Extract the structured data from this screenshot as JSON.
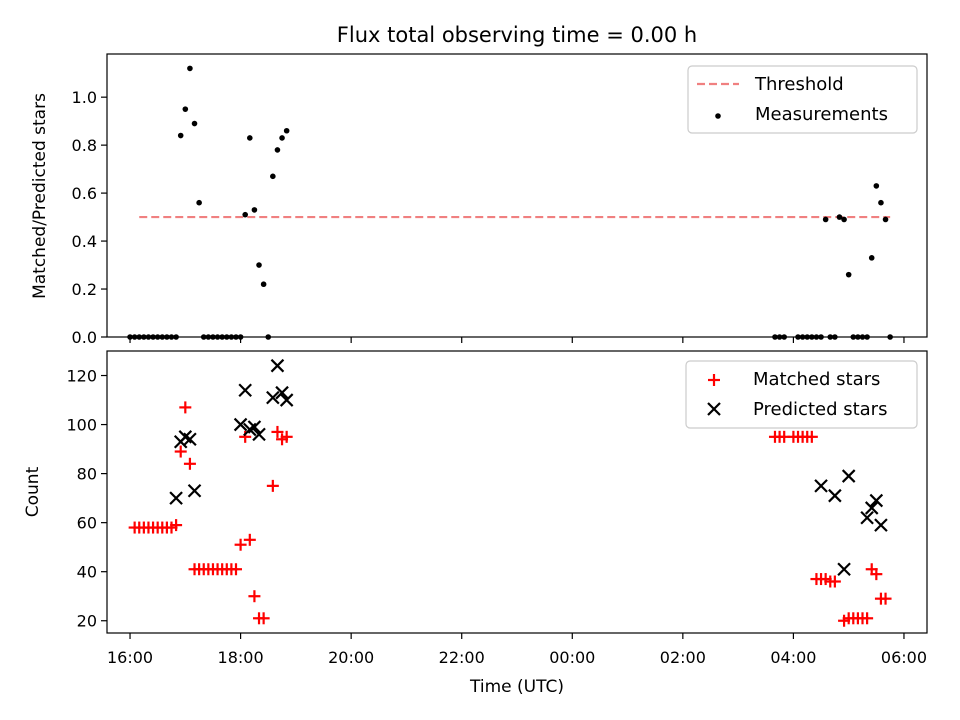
{
  "figure": {
    "title": "Flux total observing time = 0.00 h"
  },
  "chart_data": [
    {
      "type": "scatter",
      "panel": "top",
      "ylabel": "Matched/Predicted stars",
      "ylim": [
        0,
        1.18
      ],
      "yticks": [
        0.0,
        0.2,
        0.4,
        0.6,
        0.8,
        1.0
      ],
      "ytick_labels": [
        "0.0",
        "0.2",
        "0.4",
        "0.6",
        "0.8",
        "1.0"
      ],
      "legend_position": "top-right",
      "threshold": {
        "name": "Threshold",
        "value": 0.5,
        "color": "#f08080",
        "x_start": "16:10",
        "x_end": "05:45"
      },
      "series": [
        {
          "name": "Measurements",
          "color": "#000000",
          "marker": "dot",
          "points": [
            [
              "16:00",
              0
            ],
            [
              "16:05",
              0
            ],
            [
              "16:10",
              0
            ],
            [
              "16:15",
              0
            ],
            [
              "16:20",
              0
            ],
            [
              "16:25",
              0
            ],
            [
              "16:30",
              0
            ],
            [
              "16:35",
              0
            ],
            [
              "16:40",
              0
            ],
            [
              "16:45",
              0
            ],
            [
              "16:50",
              0
            ],
            [
              "16:55",
              0.84
            ],
            [
              "17:00",
              0.95
            ],
            [
              "17:05",
              1.12
            ],
            [
              "17:10",
              0.89
            ],
            [
              "17:15",
              0.56
            ],
            [
              "17:20",
              0
            ],
            [
              "17:25",
              0
            ],
            [
              "17:30",
              0
            ],
            [
              "17:35",
              0
            ],
            [
              "17:40",
              0
            ],
            [
              "17:45",
              0
            ],
            [
              "17:50",
              0
            ],
            [
              "17:55",
              0
            ],
            [
              "18:00",
              0
            ],
            [
              "18:05",
              0.51
            ],
            [
              "18:10",
              0.83
            ],
            [
              "18:15",
              0.53
            ],
            [
              "18:20",
              0.3
            ],
            [
              "18:25",
              0.22
            ],
            [
              "18:30",
              0
            ],
            [
              "18:35",
              0.67
            ],
            [
              "18:40",
              0.78
            ],
            [
              "18:45",
              0.83
            ],
            [
              "18:50",
              0.86
            ],
            [
              "03:40",
              0
            ],
            [
              "03:45",
              0
            ],
            [
              "03:50",
              0
            ],
            [
              "04:05",
              0
            ],
            [
              "04:10",
              0
            ],
            [
              "04:15",
              0
            ],
            [
              "04:20",
              0
            ],
            [
              "04:25",
              0
            ],
            [
              "04:30",
              0
            ],
            [
              "04:35",
              0.49
            ],
            [
              "04:40",
              0
            ],
            [
              "04:45",
              0
            ],
            [
              "04:50",
              0.5
            ],
            [
              "04:55",
              0.49
            ],
            [
              "05:00",
              0.26
            ],
            [
              "05:05",
              0
            ],
            [
              "05:10",
              0
            ],
            [
              "05:15",
              0
            ],
            [
              "05:20",
              0
            ],
            [
              "05:25",
              0.33
            ],
            [
              "05:30",
              0.63
            ],
            [
              "05:35",
              0.56
            ],
            [
              "05:40",
              0.49
            ],
            [
              "05:45",
              0
            ]
          ]
        }
      ]
    },
    {
      "type": "scatter",
      "panel": "bottom",
      "xlabel": "Time (UTC)",
      "ylabel": "Count",
      "ylim": [
        15,
        130
      ],
      "yticks": [
        20,
        40,
        60,
        80,
        100,
        120
      ],
      "ytick_labels": [
        "20",
        "40",
        "60",
        "80",
        "100",
        "120"
      ],
      "xlim": [
        "15:35",
        "06:25"
      ],
      "xticks": [
        "16:00",
        "18:00",
        "20:00",
        "22:00",
        "00:00",
        "02:00",
        "04:00",
        "06:00"
      ],
      "legend_position": "top-right",
      "series": [
        {
          "name": "Matched stars",
          "color": "#ff0000",
          "marker": "plus",
          "points": [
            [
              "16:05",
              58
            ],
            [
              "16:10",
              58
            ],
            [
              "16:15",
              58
            ],
            [
              "16:20",
              58
            ],
            [
              "16:25",
              58
            ],
            [
              "16:30",
              58
            ],
            [
              "16:35",
              58
            ],
            [
              "16:40",
              58
            ],
            [
              "16:45",
              58
            ],
            [
              "16:50",
              59
            ],
            [
              "16:55",
              89
            ],
            [
              "17:00",
              107
            ],
            [
              "17:05",
              84
            ],
            [
              "17:10",
              41
            ],
            [
              "17:15",
              41
            ],
            [
              "17:20",
              41
            ],
            [
              "17:25",
              41
            ],
            [
              "17:30",
              41
            ],
            [
              "17:35",
              41
            ],
            [
              "17:40",
              41
            ],
            [
              "17:45",
              41
            ],
            [
              "17:50",
              41
            ],
            [
              "17:55",
              41
            ],
            [
              "18:00",
              51
            ],
            [
              "18:05",
              95
            ],
            [
              "18:10",
              53
            ],
            [
              "18:15",
              30
            ],
            [
              "18:20",
              21
            ],
            [
              "18:25",
              21
            ],
            [
              "18:35",
              75
            ],
            [
              "18:40",
              97
            ],
            [
              "18:45",
              94
            ],
            [
              "18:50",
              95
            ],
            [
              "03:40",
              95
            ],
            [
              "03:45",
              95
            ],
            [
              "03:50",
              95
            ],
            [
              "04:00",
              95
            ],
            [
              "04:05",
              95
            ],
            [
              "04:10",
              95
            ],
            [
              "04:15",
              95
            ],
            [
              "04:20",
              95
            ],
            [
              "04:25",
              37
            ],
            [
              "04:30",
              37
            ],
            [
              "04:35",
              37
            ],
            [
              "04:40",
              36
            ],
            [
              "04:45",
              36
            ],
            [
              "04:55",
              20
            ],
            [
              "05:00",
              21
            ],
            [
              "05:05",
              21
            ],
            [
              "05:10",
              21
            ],
            [
              "05:15",
              21
            ],
            [
              "05:20",
              21
            ],
            [
              "05:25",
              41
            ],
            [
              "05:30",
              39
            ],
            [
              "05:35",
              29
            ],
            [
              "05:40",
              29
            ]
          ]
        },
        {
          "name": "Predicted stars",
          "color": "#000000",
          "marker": "x",
          "points": [
            [
              "16:50",
              70
            ],
            [
              "16:55",
              93
            ],
            [
              "17:00",
              95
            ],
            [
              "17:05",
              94
            ],
            [
              "17:10",
              73
            ],
            [
              "18:00",
              100
            ],
            [
              "18:05",
              114
            ],
            [
              "18:10",
              98
            ],
            [
              "18:15",
              99
            ],
            [
              "18:20",
              96
            ],
            [
              "18:35",
              111
            ],
            [
              "18:40",
              124
            ],
            [
              "18:45",
              113
            ],
            [
              "18:50",
              110
            ],
            [
              "04:30",
              75
            ],
            [
              "04:45",
              71
            ],
            [
              "04:55",
              41
            ],
            [
              "05:00",
              79
            ],
            [
              "05:20",
              62
            ],
            [
              "05:25",
              66
            ],
            [
              "05:30",
              69
            ],
            [
              "05:35",
              59
            ]
          ]
        }
      ]
    }
  ]
}
